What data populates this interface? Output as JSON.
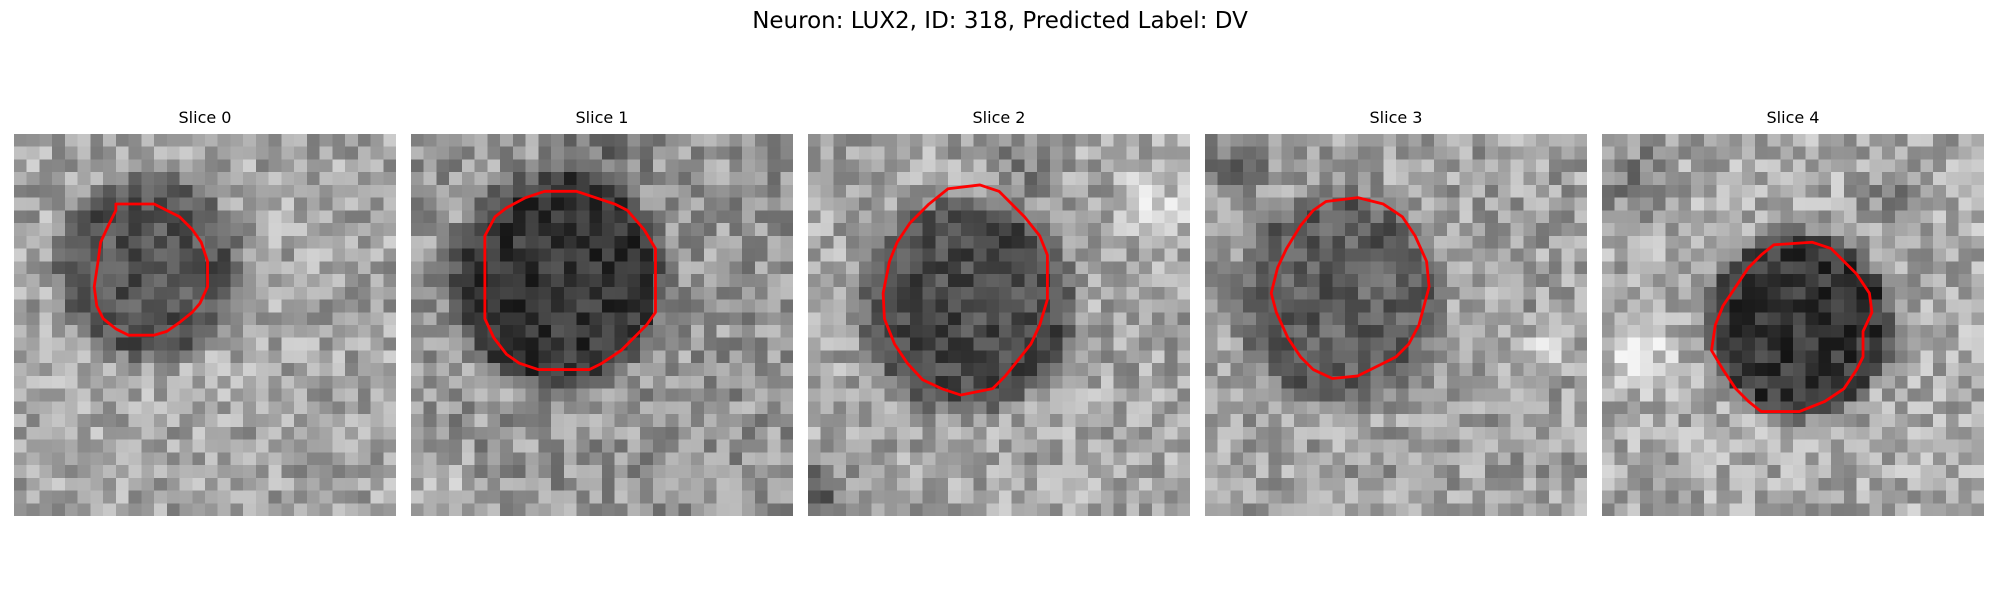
{
  "figure": {
    "title": "Neuron: LUX2, ID: 318, Predicted Label: DV"
  },
  "panels": [
    {
      "title": "Slice 0"
    },
    {
      "title": "Slice 1"
    },
    {
      "title": "Slice 2"
    },
    {
      "title": "Slice 3"
    },
    {
      "title": "Slice 4"
    }
  ],
  "colors": {
    "contour": "#ff0000",
    "background": "#ffffff"
  }
}
